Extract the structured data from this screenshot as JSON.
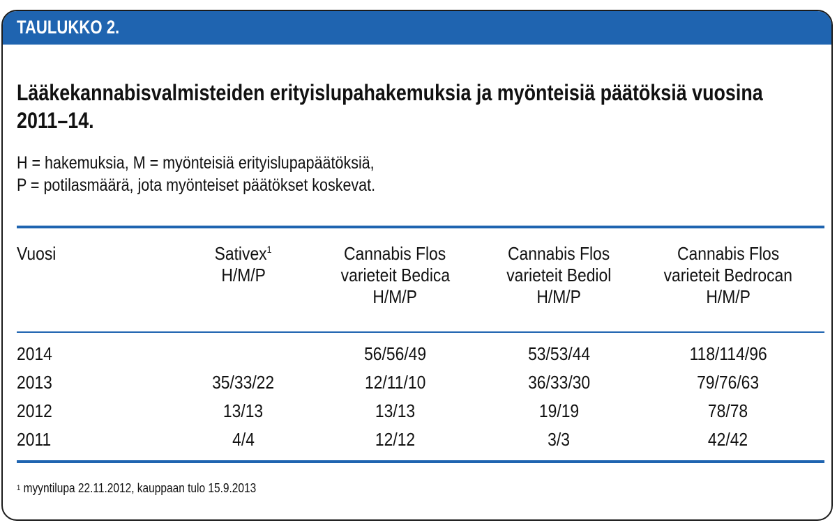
{
  "header": {
    "label": "TAULUKKO 2."
  },
  "title": "Lääkekannabisvalmisteiden erityislupahakemuksia ja  myönteisiä päätöksiä vuosina 2011–14.",
  "subtitle": {
    "line1": "H = hakemuksia, M = myönteisiä erityislupapäätöksiä,",
    "line2": "P = potilasmäärä, jota myönteiset päätökset koskevat."
  },
  "table": {
    "columns": [
      {
        "lines": [
          "Vuosi"
        ]
      },
      {
        "lines": [
          "Sativex",
          "H/M/P"
        ],
        "footnote_mark": "1"
      },
      {
        "lines": [
          "Cannabis Flos",
          "varieteit Bedica",
          "H/M/P"
        ]
      },
      {
        "lines": [
          "Cannabis Flos",
          "varieteit Bediol",
          "H/M/P"
        ]
      },
      {
        "lines": [
          "Cannabis Flos",
          "varieteit Bedrocan",
          "H/M/P"
        ]
      }
    ],
    "rows": [
      [
        "2014",
        "",
        "56/56/49",
        "53/53/44",
        "118/114/96"
      ],
      [
        "2013",
        "35/33/22",
        "12/11/10",
        "36/33/30",
        "79/76/63"
      ],
      [
        "2012",
        "13/13",
        "13/13",
        "19/19",
        "78/78"
      ],
      [
        "2011",
        "4/4",
        "12/12",
        "3/3",
        "42/42"
      ]
    ]
  },
  "footnote": {
    "mark": "1",
    "text": "myyntilupa 22.11.2012, kauppaan tulo 15.9.2013"
  },
  "colors": {
    "accent": "#1f64b0",
    "border": "#1b1b1b",
    "text": "#111111"
  }
}
